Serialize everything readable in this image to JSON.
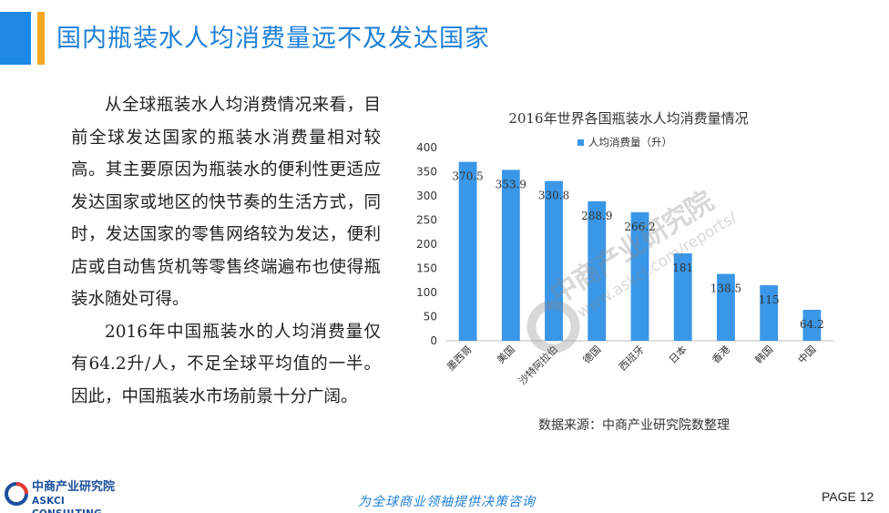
{
  "header": {
    "title": "国内瓶装水人均消费量远不及发达国家"
  },
  "body": {
    "paragraph1": "从全球瓶装水人均消费情况来看，目前全球发达国家的瓶装水消费量相对较高。其主要原因为瓶装水的便利性更适应发达国家或地区的快节奏的生活方式，同时，发达国家的零售网络较为发达，便利店或自动售货机等零售终端遍布也使得瓶装水随处可得。",
    "paragraph2": "2016年中国瓶装水的人均消费量仅有64.2升/人，不足全球平均值的一半。 因此，中国瓶装水市场前景十分广阔。"
  },
  "chart_data": {
    "type": "bar",
    "title": "2016年世界各国瓶装水人均消费量情况",
    "categories": [
      "墨西哥",
      "美国",
      "沙特阿拉伯",
      "德国",
      "西班牙",
      "日本",
      "香港",
      "韩国",
      "中国"
    ],
    "series": [
      {
        "name": "人均消费量（升）",
        "values": [
          370.5,
          353.9,
          330.8,
          288.9,
          266.2,
          181,
          138.5,
          115,
          64.2
        ]
      }
    ],
    "value_labels": [
      "370.5",
      "353.9",
      "330.8",
      "288.9",
      "266.2",
      "181",
      "138.5",
      "115",
      "64.2"
    ],
    "ylim": [
      0,
      400
    ],
    "yticks": [
      "0",
      "50",
      "100",
      "150",
      "200",
      "250",
      "300",
      "350",
      "400"
    ],
    "grid": false,
    "legend": "top",
    "bar_color": "#3a96e6"
  },
  "watermark": {
    "text": "中商产业研究院",
    "url": "www.askci.com/reports/"
  },
  "source": {
    "text": "数据来源：中商产业研究院数整理"
  },
  "footer": {
    "logo_cn": "中商产业研究院",
    "logo_en": "ASKCI CONSULTING",
    "slogan": "为全球商业领袖提供决策咨询",
    "page": "PAGE  12"
  },
  "colors": {
    "accent_blue": "#1e88e5",
    "accent_orange": "#f5a623",
    "title_blue": "#1e7fd8"
  }
}
